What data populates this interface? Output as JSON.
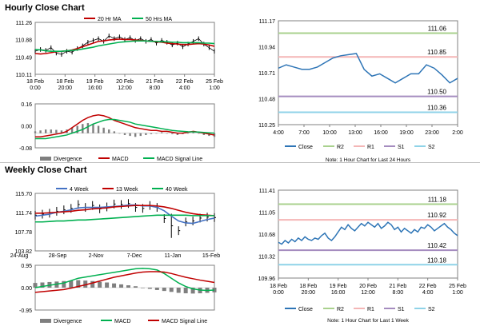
{
  "sections": {
    "hourly_title": "Hourly Close Chart",
    "weekly_title": "Weekly Close Chart"
  },
  "colors": {
    "ma_short": "#c00000",
    "ma_long": "#00b050",
    "ma_4week": "#4472c4",
    "close_line": "#2e75b6",
    "r2": "#a9d18e",
    "r1": "#f4b6b6",
    "s1": "#a58cbf",
    "s2": "#8fd3e8",
    "divergence": "#7f7f7f",
    "macd": "#c00000",
    "signal": "#00b050"
  },
  "chart_data": [
    {
      "id": "hourly_price",
      "type": "line",
      "title": "",
      "ylim": [
        110.11,
        111.26
      ],
      "yticks": [
        "111.26",
        "110.88",
        "110.49",
        "110.11"
      ],
      "xticks": [
        "18 Feb\n0:00",
        "18 Feb\n20:00",
        "19 Feb\n16:00",
        "20 Feb\n12:00",
        "21 Feb\n8:00",
        "22 Feb\n4:00",
        "25 Feb\n1:00"
      ],
      "legend": [
        "20 Hr MA",
        "50 Hrs MA"
      ],
      "series": [
        {
          "name": "Price",
          "values": [
            110.62,
            110.66,
            110.64,
            110.7,
            110.58,
            110.55,
            110.62,
            110.6,
            110.68,
            110.74,
            110.82,
            110.86,
            110.9,
            110.84,
            110.96,
            110.9,
            110.94,
            110.88,
            110.92,
            110.86,
            110.9,
            110.84,
            110.88,
            110.8,
            110.86,
            110.82,
            110.76,
            110.8,
            110.72,
            110.78,
            110.84,
            110.9,
            110.78,
            110.7,
            110.62
          ]
        },
        {
          "name": "20 Hr MA",
          "values": [
            110.57,
            110.56,
            110.57,
            110.59,
            110.61,
            110.62,
            110.63,
            110.65,
            110.68,
            110.72,
            110.76,
            110.8,
            110.84,
            110.85,
            110.87,
            110.88,
            110.89,
            110.88,
            110.88,
            110.87,
            110.86,
            110.85,
            110.84,
            110.83,
            110.82,
            110.8,
            110.79,
            110.78,
            110.77,
            110.77,
            110.78,
            110.79,
            110.78,
            110.76,
            110.73
          ]
        },
        {
          "name": "50 Hrs MA",
          "values": [
            110.66,
            110.65,
            110.63,
            110.62,
            110.62,
            110.62,
            110.63,
            110.64,
            110.65,
            110.67,
            110.69,
            110.71,
            110.74,
            110.76,
            110.78,
            110.8,
            110.82,
            110.83,
            110.84,
            110.85,
            110.85,
            110.85,
            110.84,
            110.84,
            110.83,
            110.83,
            110.82,
            110.82,
            110.81,
            110.81,
            110.81,
            110.81,
            110.8,
            110.8,
            110.79
          ]
        }
      ]
    },
    {
      "id": "hourly_macd",
      "type": "bar",
      "ylim": [
        -0.08,
        0.16
      ],
      "yticks": [
        "0.16",
        "0.00",
        "-0.08"
      ],
      "xticks": [
        "18 Feb\n0:00",
        "18 Feb\n20:00",
        "19 Feb\n16:00",
        "20 Feb\n12:00",
        "21 Feb\n8:00",
        "22 Feb\n4:00",
        "25 Feb\n1:00"
      ],
      "legend": [
        "Divergence",
        "MACD",
        "MACD Signal Line"
      ],
      "series": [
        {
          "name": "Divergence",
          "values": [
            0.01,
            0.015,
            0.02,
            0.02,
            0.018,
            0.015,
            0.02,
            0.03,
            0.04,
            0.05,
            0.055,
            0.05,
            0.04,
            0.03,
            0.02,
            0.01,
            0.0,
            -0.01,
            -0.015,
            -0.02,
            -0.015,
            -0.01,
            -0.005,
            0.0,
            0.005,
            0.0,
            -0.005,
            -0.01,
            -0.005,
            0.0,
            0.005,
            0.0,
            -0.01,
            -0.015,
            -0.02
          ]
        },
        {
          "name": "MACD",
          "values": [
            -0.02,
            -0.02,
            -0.015,
            -0.01,
            -0.005,
            0.0,
            0.01,
            0.03,
            0.05,
            0.07,
            0.085,
            0.095,
            0.1,
            0.095,
            0.085,
            0.07,
            0.06,
            0.05,
            0.04,
            0.03,
            0.025,
            0.02,
            0.015,
            0.015,
            0.01,
            0.01,
            0.005,
            0.0,
            0.0,
            0.005,
            0.01,
            0.005,
            0.0,
            -0.005,
            -0.01
          ]
        },
        {
          "name": "MACD Signal Line",
          "values": [
            -0.03,
            -0.03,
            -0.03,
            -0.025,
            -0.02,
            -0.015,
            -0.01,
            0.0,
            0.01,
            0.02,
            0.035,
            0.05,
            0.06,
            0.07,
            0.075,
            0.075,
            0.07,
            0.065,
            0.06,
            0.05,
            0.045,
            0.04,
            0.035,
            0.03,
            0.025,
            0.02,
            0.015,
            0.012,
            0.01,
            0.008,
            0.007,
            0.006,
            0.004,
            0.002,
            0.0
          ]
        }
      ]
    },
    {
      "id": "hourly_levels",
      "type": "line",
      "ylim": [
        110.25,
        111.17
      ],
      "yticks": [
        "111.17",
        "110.94",
        "110.71",
        "110.48",
        "110.25"
      ],
      "xticks": [
        "4:00",
        "7:00",
        "10:00",
        "13:00",
        "16:00",
        "19:00",
        "23:00",
        "2:00"
      ],
      "legend": [
        "Close",
        "R2",
        "R1",
        "S1",
        "S2"
      ],
      "levels": {
        "R2": 111.06,
        "R1": 110.85,
        "S1": 110.5,
        "S2": 110.36
      },
      "level_labels": {
        "R2": "111.06",
        "R1": "110.85",
        "S1": "110.50",
        "S2": "110.36"
      },
      "series": [
        {
          "name": "Close",
          "values": [
            110.75,
            110.78,
            110.76,
            110.74,
            110.74,
            110.76,
            110.8,
            110.84,
            110.86,
            110.87,
            110.88,
            110.74,
            110.68,
            110.7,
            110.66,
            110.62,
            110.66,
            110.7,
            110.7,
            110.78,
            110.75,
            110.69,
            110.62,
            110.66
          ]
        }
      ],
      "note": "Note: 1 Hour Chart for Last 24 Hours"
    },
    {
      "id": "weekly_price",
      "type": "line",
      "ylim": [
        103.82,
        115.7
      ],
      "yticks": [
        "115.70",
        "111.74",
        "107.78",
        "103.82"
      ],
      "xticks": [
        "24-Aug",
        "28-Sep",
        "2-Nov",
        "7-Dec",
        "11-Jan",
        "15-Feb"
      ],
      "legend": [
        "4 Week",
        "13 Week",
        "40 Week"
      ],
      "series": [
        {
          "name": "Price",
          "values": [
            111.2,
            111.4,
            111.6,
            112.0,
            112.3,
            112.6,
            113.4,
            112.8,
            113.2,
            112.5,
            112.9,
            113.5,
            113.4,
            113.6,
            112.8,
            112.6,
            113.2,
            112.8,
            110.5,
            109.0,
            108.0,
            109.8,
            110.0,
            110.6,
            110.8,
            110.7
          ]
        },
        {
          "name": "4 Week",
          "values": [
            111.0,
            111.2,
            111.4,
            111.8,
            112.0,
            112.3,
            112.7,
            112.8,
            112.8,
            112.8,
            112.9,
            113.0,
            113.1,
            113.3,
            113.3,
            113.1,
            113.1,
            112.8,
            112.1,
            111.0,
            110.0,
            109.6,
            109.5,
            109.9,
            110.3,
            110.6
          ]
        },
        {
          "name": "13 Week",
          "values": [
            111.6,
            111.6,
            111.7,
            111.8,
            111.9,
            112.0,
            112.2,
            112.3,
            112.5,
            112.6,
            112.7,
            112.9,
            113.0,
            113.1,
            113.2,
            113.2,
            113.2,
            113.1,
            112.9,
            112.6,
            112.2,
            111.8,
            111.5,
            111.3,
            111.2,
            111.1
          ]
        },
        {
          "name": "40 Week",
          "values": [
            109.8,
            109.8,
            109.9,
            110.0,
            110.0,
            110.1,
            110.2,
            110.2,
            110.3,
            110.4,
            110.5,
            110.6,
            110.7,
            110.8,
            110.9,
            111.0,
            111.1,
            111.2,
            111.2,
            111.2,
            111.2,
            111.2,
            111.1,
            111.1,
            111.1,
            111.1
          ]
        }
      ]
    },
    {
      "id": "weekly_macd",
      "type": "bar",
      "ylim": [
        -0.95,
        0.95
      ],
      "yticks": [
        "0.95",
        "0.00",
        "-0.95"
      ],
      "legend": [
        "Divergence",
        "MACD",
        "MACD Signal Line"
      ],
      "series": [
        {
          "name": "Divergence",
          "values": [
            0.2,
            0.22,
            0.24,
            0.26,
            0.28,
            0.3,
            0.32,
            0.3,
            0.28,
            0.25,
            0.22,
            0.18,
            0.14,
            0.1,
            0.06,
            0.0,
            -0.05,
            -0.1,
            -0.14,
            -0.18,
            -0.22,
            -0.24,
            -0.25,
            -0.24,
            -0.22,
            -0.2
          ]
        },
        {
          "name": "MACD",
          "values": [
            0.0,
            0.05,
            0.1,
            0.15,
            0.2,
            0.3,
            0.4,
            0.45,
            0.5,
            0.55,
            0.6,
            0.65,
            0.7,
            0.75,
            0.8,
            0.82,
            0.8,
            0.75,
            0.6,
            0.4,
            0.2,
            0.05,
            -0.05,
            -0.1,
            -0.12,
            -0.1
          ]
        },
        {
          "name": "MACD Signal Line",
          "values": [
            -0.2,
            -0.17,
            -0.14,
            -0.11,
            -0.08,
            -0.02,
            0.05,
            0.12,
            0.2,
            0.28,
            0.36,
            0.44,
            0.5,
            0.56,
            0.62,
            0.66,
            0.68,
            0.68,
            0.66,
            0.6,
            0.52,
            0.44,
            0.38,
            0.32,
            0.27,
            0.22
          ]
        }
      ]
    },
    {
      "id": "weekly_levels",
      "type": "line",
      "ylim": [
        109.96,
        111.41
      ],
      "yticks": [
        "111.41",
        "111.05",
        "110.68",
        "110.32",
        "109.96"
      ],
      "xticks": [
        "18 Feb\n0:00",
        "18 Feb\n20:00",
        "19 Feb\n16:00",
        "20 Feb\n12:00",
        "21 Feb\n8:00",
        "22 Feb\n4:00",
        "25 Feb\n1:00"
      ],
      "legend": [
        "Close",
        "R2",
        "R1",
        "S1",
        "S2"
      ],
      "levels": {
        "R2": 111.18,
        "R1": 110.92,
        "S1": 110.42,
        "S2": 110.18
      },
      "level_labels": {
        "R2": "111.18",
        "R1": "110.92",
        "S1": "110.42",
        "S2": "110.18"
      },
      "series": [
        {
          "name": "Close",
          "values": [
            110.55,
            110.52,
            110.58,
            110.54,
            110.6,
            110.56,
            110.62,
            110.58,
            110.64,
            110.6,
            110.58,
            110.62,
            110.6,
            110.66,
            110.7,
            110.62,
            110.58,
            110.64,
            110.72,
            110.8,
            110.76,
            110.84,
            110.78,
            110.74,
            110.8,
            110.86,
            110.82,
            110.88,
            110.84,
            110.8,
            110.86,
            110.78,
            110.82,
            110.88,
            110.84,
            110.76,
            110.8,
            110.72,
            110.78,
            110.74,
            110.7,
            110.76,
            110.72,
            110.8,
            110.78,
            110.84,
            110.8,
            110.74,
            110.78,
            110.82,
            110.86,
            110.8,
            110.76,
            110.7,
            110.66
          ]
        }
      ],
      "note": "Note: 1 Hour Chart for Last 1 Week"
    }
  ]
}
